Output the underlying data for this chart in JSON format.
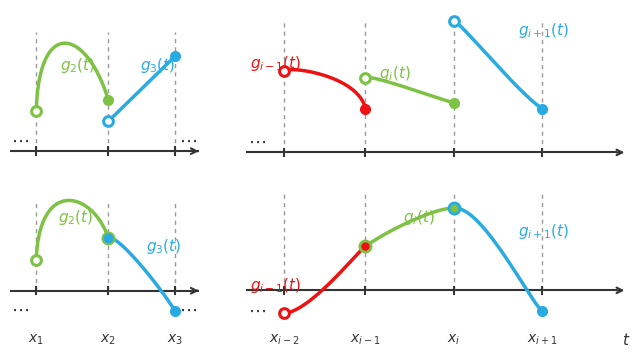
{
  "green": "#7DC242",
  "blue": "#29ABE2",
  "red": "#EE1111",
  "axis_col": "#333333",
  "dash_col": "#999999",
  "bg": "#FFFFFF",
  "lfs": 11,
  "tfs": 10
}
